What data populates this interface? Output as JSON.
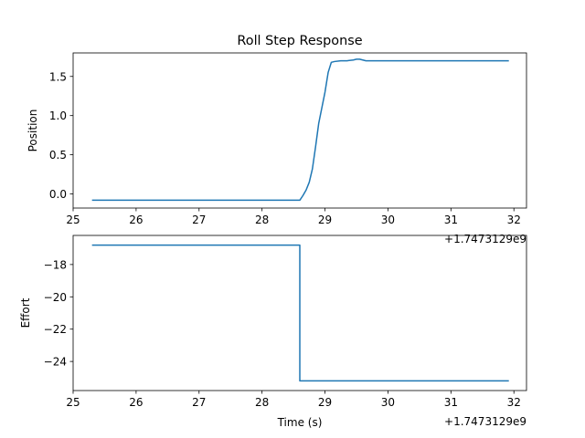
{
  "figure": {
    "background": "#ffffff",
    "axes_color": "#000000",
    "series_color": "#1f77b4"
  },
  "chart_data": [
    {
      "type": "line",
      "title": "Roll Step Response",
      "xlabel": "",
      "ylabel": "Position",
      "offset_label": "+1.7473129e9",
      "xlim": [
        25.0,
        32.2
      ],
      "ylim": [
        -0.18,
        1.8
      ],
      "xticks": [
        25,
        26,
        27,
        28,
        29,
        30,
        31,
        32
      ],
      "xtick_labels": [
        "25",
        "26",
        "27",
        "28",
        "29",
        "30",
        "31",
        "32"
      ],
      "yticks": [
        -0.0,
        0.5,
        1.0,
        1.5
      ],
      "ytick_labels": [
        "0.0",
        "0.5",
        "1.0",
        "1.5"
      ],
      "grid": false,
      "series": [
        {
          "x": [
            25.3,
            28.6,
            28.65,
            28.7,
            28.75,
            28.8,
            28.85,
            28.9,
            28.95,
            29.0,
            29.05,
            29.1,
            29.15,
            29.25,
            29.35,
            29.45,
            29.5,
            29.55,
            29.6,
            29.65,
            29.7,
            31.92
          ],
          "y": [
            -0.08,
            -0.08,
            -0.02,
            0.05,
            0.15,
            0.32,
            0.6,
            0.9,
            1.1,
            1.3,
            1.55,
            1.68,
            1.69,
            1.7,
            1.7,
            1.71,
            1.72,
            1.72,
            1.71,
            1.7,
            1.7,
            1.7
          ]
        }
      ]
    },
    {
      "type": "line",
      "title": "",
      "xlabel": "Time (s)",
      "ylabel": "Effort",
      "offset_label": "+1.7473129e9",
      "xlim": [
        25.0,
        32.2
      ],
      "ylim": [
        -25.8,
        -16.2
      ],
      "xticks": [
        25,
        26,
        27,
        28,
        29,
        30,
        31,
        32
      ],
      "xtick_labels": [
        "25",
        "26",
        "27",
        "28",
        "29",
        "30",
        "31",
        "32"
      ],
      "yticks": [
        -18,
        -20,
        -22,
        -24
      ],
      "ytick_labels": [
        "−18",
        "−20",
        "−22",
        "−24"
      ],
      "grid": false,
      "series": [
        {
          "x": [
            25.3,
            28.6,
            28.6,
            31.92
          ],
          "y": [
            -16.8,
            -16.8,
            -25.2,
            -25.2
          ]
        }
      ]
    }
  ]
}
